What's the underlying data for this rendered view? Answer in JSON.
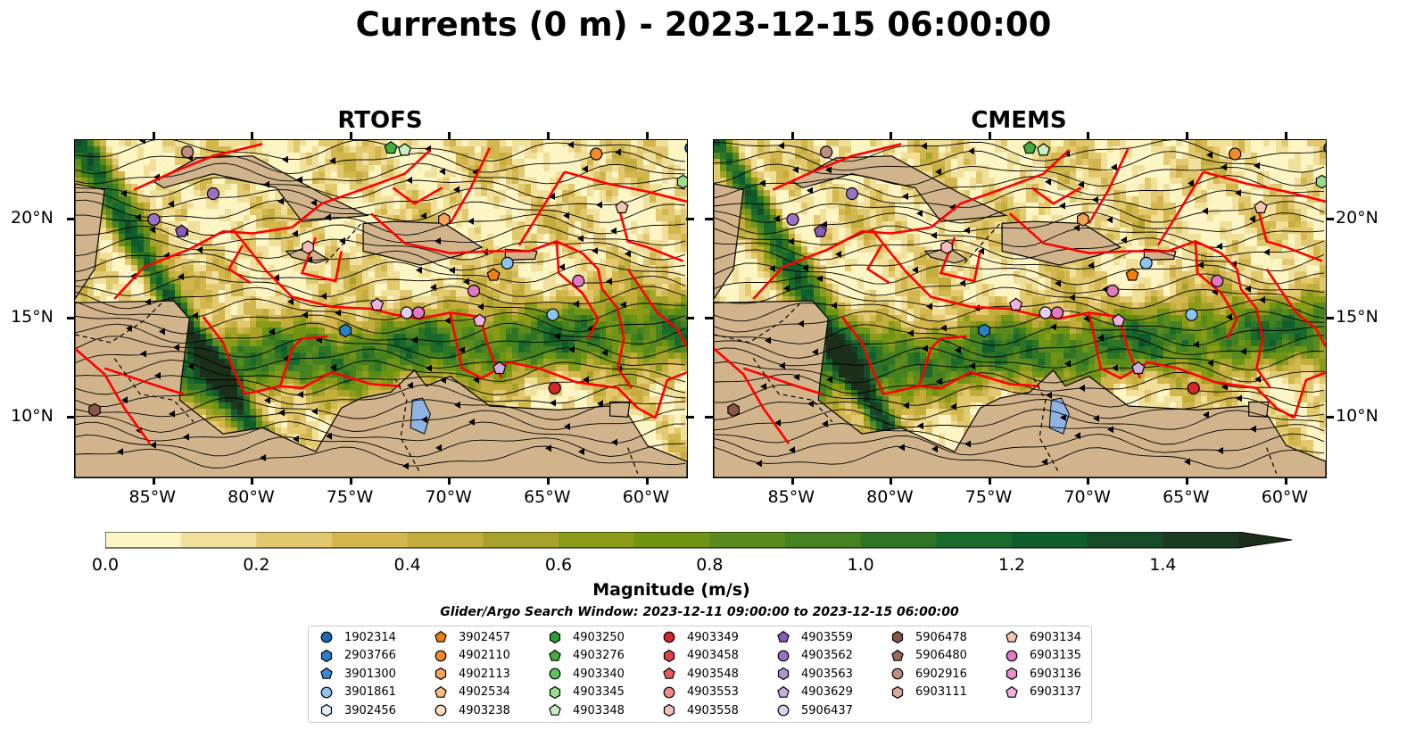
{
  "title": "Currents (0 m) - 2023-12-15 06:00:00",
  "panels": [
    {
      "title": "RTOFS"
    },
    {
      "title": "CMEMS"
    }
  ],
  "map": {
    "lon_range": [
      -89,
      -58
    ],
    "lat_range": [
      7,
      24
    ],
    "lon_ticks": [
      "85°W",
      "80°W",
      "75°W",
      "70°W",
      "65°W",
      "60°W"
    ],
    "lat_ticks": [
      "20°N",
      "15°N",
      "10°N"
    ],
    "land_color": "#d2b48c",
    "eez_color": "#ff0000",
    "streamline_color": "#000000"
  },
  "colorbar": {
    "label": "Magnitude (m/s)",
    "ticks": [
      "0.0",
      "0.2",
      "0.4",
      "0.6",
      "0.8",
      "1.0",
      "1.2",
      "1.4"
    ],
    "range": [
      0,
      1.5
    ],
    "colors": [
      "#fdf5c4",
      "#f1e099",
      "#e2c970",
      "#d4b64f",
      "#c3ad3c",
      "#a6a22a",
      "#8a9c17",
      "#709514",
      "#5a8a1b",
      "#458120",
      "#2f7424",
      "#1a6a2c",
      "#0f5d2c",
      "#174b28",
      "#1a3b22",
      "#1b2e1a"
    ]
  },
  "search_window": "Glider/Argo Search Window: 2023-12-11 09:00:00 to 2023-12-15 06:00:00",
  "legend": {
    "columns": [
      [
        {
          "id": "1902314",
          "marker": "circle",
          "color": "#1f67b0"
        },
        {
          "id": "2903766",
          "marker": "hexagon",
          "color": "#2c7fc4"
        },
        {
          "id": "3901300",
          "marker": "pentagon",
          "color": "#3a8bd0"
        },
        {
          "id": "3901861",
          "marker": "circle",
          "color": "#8cc4ec"
        },
        {
          "id": "3902456",
          "marker": "hexagon",
          "color": "#ddeefa"
        }
      ],
      [
        {
          "id": "3902457",
          "marker": "pentagon",
          "color": "#f07f0f"
        },
        {
          "id": "4902110",
          "marker": "circle",
          "color": "#f28a2a"
        },
        {
          "id": "4902113",
          "marker": "hexagon",
          "color": "#f6a456"
        },
        {
          "id": "4902534",
          "marker": "pentagon",
          "color": "#f9bf88"
        },
        {
          "id": "4903238",
          "marker": "circle",
          "color": "#fddcbf"
        }
      ],
      [
        {
          "id": "4903250",
          "marker": "hexagon",
          "color": "#2e9e33"
        },
        {
          "id": "4903276",
          "marker": "pentagon",
          "color": "#43ac3e"
        },
        {
          "id": "4903340",
          "marker": "circle",
          "color": "#5fc45a"
        },
        {
          "id": "4903345",
          "marker": "hexagon",
          "color": "#98dc8c"
        },
        {
          "id": "4903348",
          "marker": "pentagon",
          "color": "#c7f0c0"
        }
      ],
      [
        {
          "id": "4903349",
          "marker": "circle",
          "color": "#d2282a"
        },
        {
          "id": "4903458",
          "marker": "hexagon",
          "color": "#de4446"
        },
        {
          "id": "4903548",
          "marker": "pentagon",
          "color": "#e65a5c"
        },
        {
          "id": "4903553",
          "marker": "circle",
          "color": "#f08a8a"
        },
        {
          "id": "4903558",
          "marker": "hexagon",
          "color": "#f8bcbc"
        }
      ],
      [
        {
          "id": "4903559",
          "marker": "pentagon",
          "color": "#8a5cb8"
        },
        {
          "id": "4903562",
          "marker": "circle",
          "color": "#9b72c4"
        },
        {
          "id": "4903563",
          "marker": "hexagon",
          "color": "#b294d6"
        },
        {
          "id": "4903629",
          "marker": "pentagon",
          "color": "#c7aee2"
        },
        {
          "id": "5906437",
          "marker": "circle",
          "color": "#e0d0f2"
        }
      ],
      [
        {
          "id": "5906478",
          "marker": "hexagon",
          "color": "#8b5646"
        },
        {
          "id": "5906480",
          "marker": "pentagon",
          "color": "#9c6a5a"
        },
        {
          "id": "6902916",
          "marker": "circle",
          "color": "#c08e80"
        },
        {
          "id": "6903111",
          "marker": "hexagon",
          "color": "#d9aa9c"
        }
      ],
      [
        {
          "id": "6903134",
          "marker": "pentagon",
          "color": "#f6c6b4"
        },
        {
          "id": "6903135",
          "marker": "circle",
          "color": "#e277c4"
        },
        {
          "id": "6903136",
          "marker": "hexagon",
          "color": "#ea8fd0"
        },
        {
          "id": "6903137",
          "marker": "pentagon",
          "color": "#f2b0de"
        }
      ]
    ]
  },
  "floats": [
    {
      "id": "6902916",
      "lon": -83.3,
      "lat": 23.4
    },
    {
      "id": "4903276",
      "lon": -73.0,
      "lat": 23.6
    },
    {
      "id": "4903348",
      "lon": -72.3,
      "lat": 23.5
    },
    {
      "id": "4902110",
      "lon": -62.6,
      "lat": 23.3
    },
    {
      "id": "1902314",
      "lon": -57.8,
      "lat": 23.6
    },
    {
      "id": "4903345",
      "lon": -58.2,
      "lat": 21.9
    },
    {
      "id": "4903562",
      "lon": -82.0,
      "lat": 21.3
    },
    {
      "id": "4903559",
      "lon": -83.6,
      "lat": 19.4
    },
    {
      "id": "4903562",
      "lon": -85.0,
      "lat": 20.0
    },
    {
      "id": "6903134",
      "lon": -61.3,
      "lat": 20.6
    },
    {
      "id": "4902113",
      "lon": -70.3,
      "lat": 20.0
    },
    {
      "id": "4903558",
      "lon": -77.2,
      "lat": 18.6
    },
    {
      "id": "3901861",
      "lon": -67.1,
      "lat": 17.8
    },
    {
      "id": "3902457",
      "lon": -67.8,
      "lat": 17.2
    },
    {
      "id": "6903135",
      "lon": -63.5,
      "lat": 16.9
    },
    {
      "id": "6903135",
      "lon": -68.8,
      "lat": 16.4
    },
    {
      "id": "6903137",
      "lon": -73.7,
      "lat": 15.7
    },
    {
      "id": "5906437",
      "lon": -72.2,
      "lat": 15.3
    },
    {
      "id": "6903135",
      "lon": -71.6,
      "lat": 15.3
    },
    {
      "id": "6903137",
      "lon": -68.5,
      "lat": 14.9
    },
    {
      "id": "3901861",
      "lon": -64.8,
      "lat": 15.2
    },
    {
      "id": "2903766",
      "lon": -75.3,
      "lat": 14.4
    },
    {
      "id": "4903629",
      "lon": -67.5,
      "lat": 12.5
    },
    {
      "id": "4903349",
      "lon": -64.7,
      "lat": 11.5
    },
    {
      "id": "5906478",
      "lon": -88.0,
      "lat": 10.4
    }
  ]
}
